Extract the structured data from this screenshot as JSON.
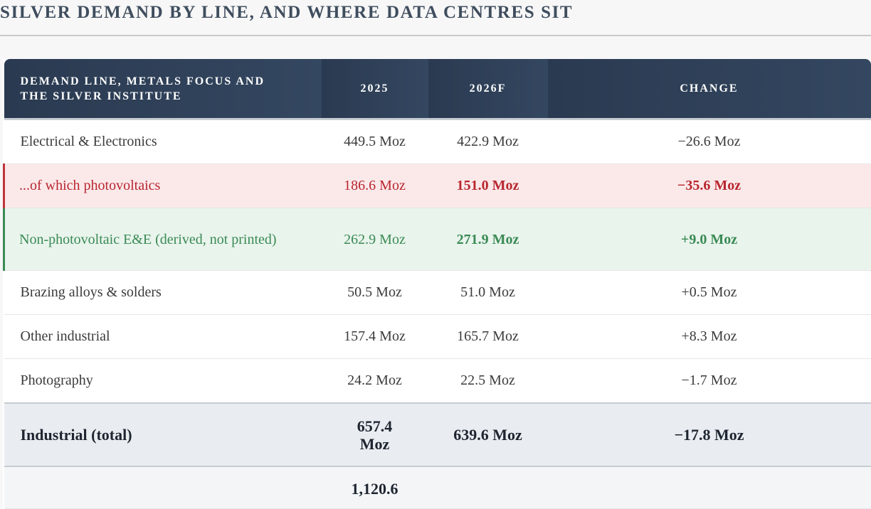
{
  "header": {
    "title": "SILVER DEMAND BY LINE, AND WHERE DATA CENTRES SIT"
  },
  "table": {
    "columns": [
      "DEMAND LINE, METALS FOCUS AND THE SILVER INSTITUTE",
      "2025",
      "2026F",
      "CHANGE"
    ],
    "rows": [
      {
        "style": "normal",
        "cells": [
          "Electrical & Electronics",
          "449.5 Moz",
          "422.9 Moz",
          "−26.6 Moz"
        ]
      },
      {
        "style": "negative",
        "cells": [
          "...of which photovoltaics",
          "186.6 Moz",
          "151.0 Moz",
          "−35.6 Moz"
        ]
      },
      {
        "style": "positive",
        "cells": [
          "Non-photovoltaic E&E (derived, not printed)",
          "262.9 Moz",
          "271.9 Moz",
          "+9.0 Moz"
        ]
      },
      {
        "style": "normal",
        "cells": [
          "Brazing alloys & solders",
          "50.5 Moz",
          "51.0 Moz",
          "+0.5 Moz"
        ]
      },
      {
        "style": "normal",
        "cells": [
          "Other industrial",
          "157.4 Moz",
          "165.7 Moz",
          "+8.3 Moz"
        ]
      },
      {
        "style": "normal",
        "cells": [
          "Photography",
          "24.2 Moz",
          "22.5 Moz",
          "−1.7 Moz"
        ]
      },
      {
        "style": "total",
        "cells": [
          "Industrial (total)",
          "657.4 Moz",
          "639.6 Moz",
          "−17.8 Moz"
        ]
      }
    ],
    "cutoff_row": {
      "cell_2025": "1,120.6"
    }
  }
}
